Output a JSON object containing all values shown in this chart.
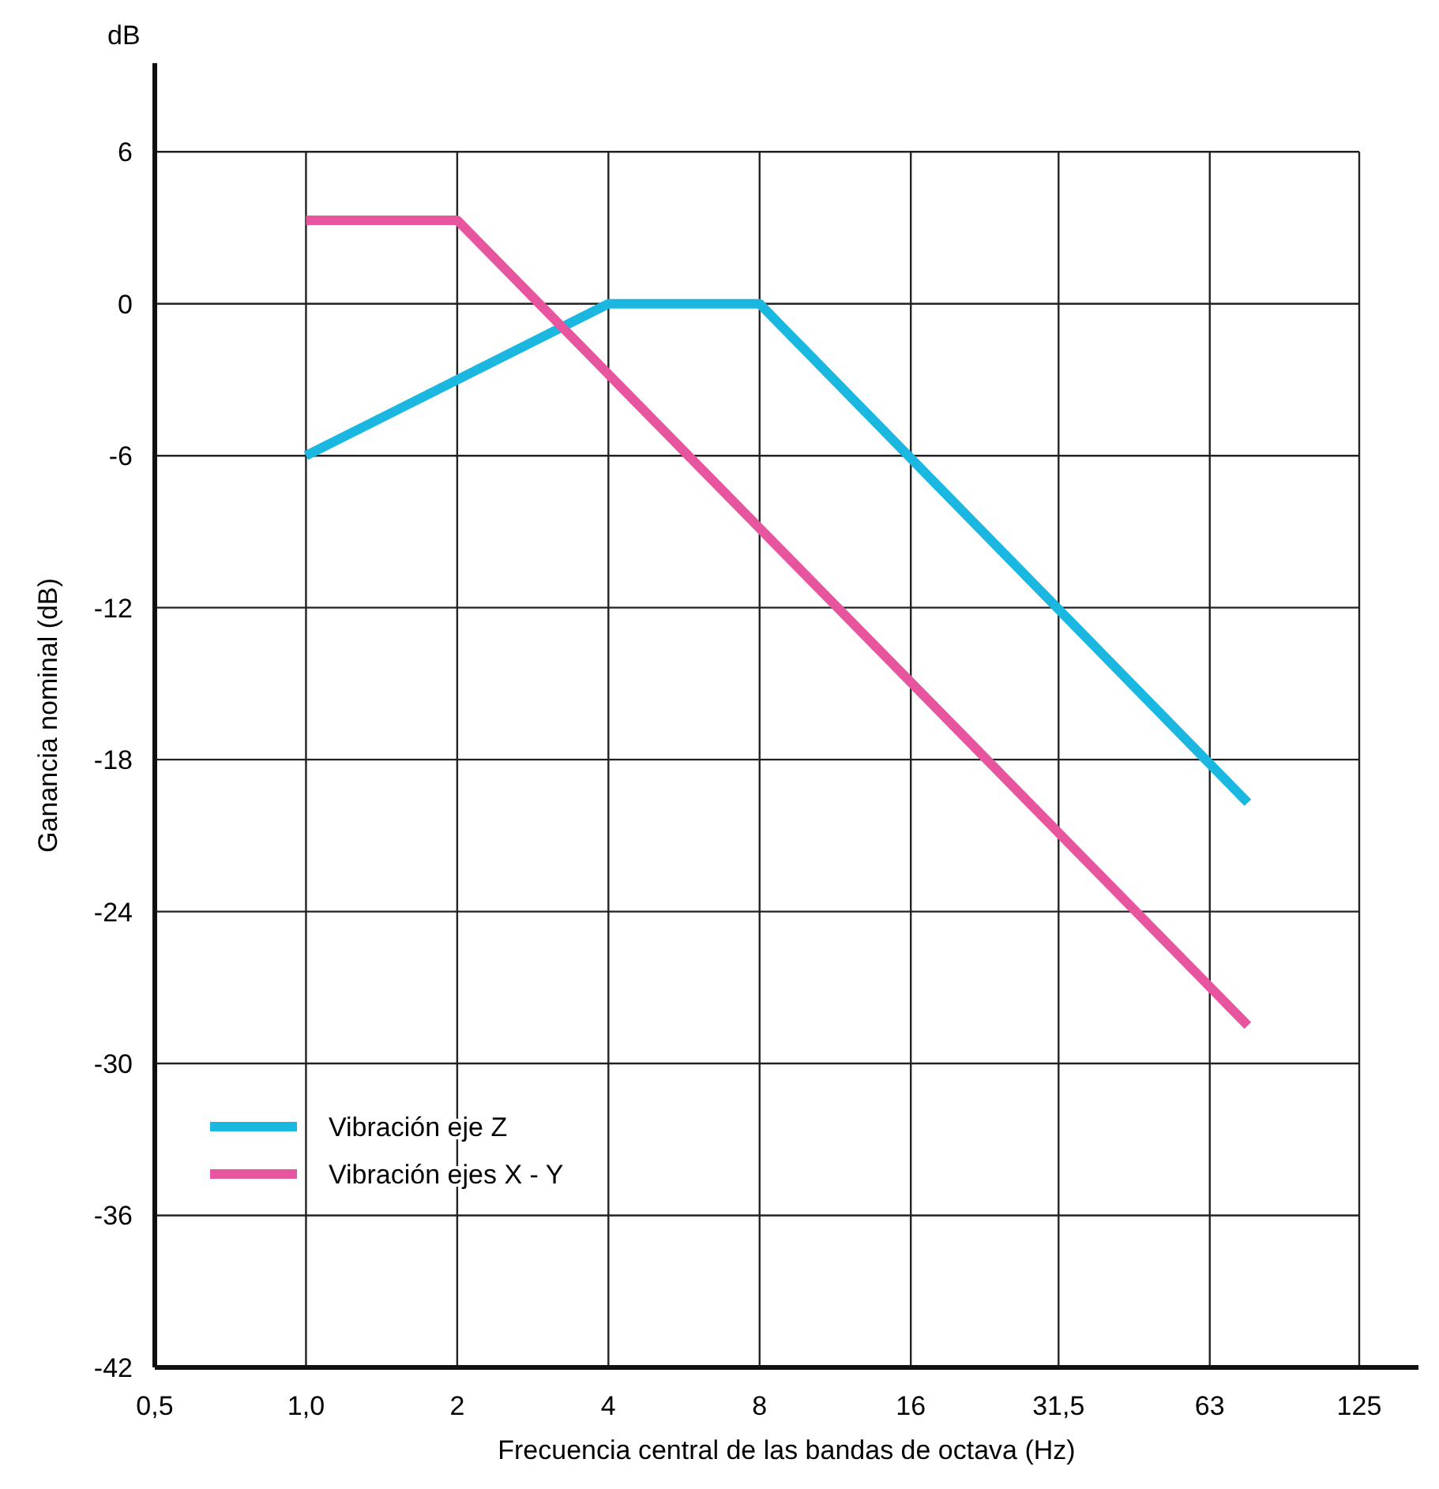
{
  "chart_data": {
    "type": "line",
    "xlabel": "Frecuencia central de las bandas de octava (Hz)",
    "ylabel": "Ganancia nominal (dB)",
    "annotations": [
      "dB"
    ],
    "log": "x",
    "xlim": [
      0.5,
      164
    ],
    "xticks": [
      {
        "value": 0.5,
        "label": "0,5"
      },
      {
        "value": 1,
        "label": "1,0"
      },
      2,
      4,
      8,
      16,
      {
        "value": 31.5,
        "label": "31,5"
      },
      63,
      125
    ],
    "ylim": [
      -42,
      9.5
    ],
    "yticks": [
      -42,
      -36,
      -30,
      -24,
      -18,
      -12,
      -6,
      0,
      6
    ],
    "grid": true,
    "legend": "bottom left",
    "marker": "none",
    "line_style": "solid",
    "series": [
      {
        "name": "Vibración eje Z",
        "color": "#1ab8e0",
        "x": [
          1,
          4,
          8,
          75
        ],
        "values": [
          -6,
          0,
          0,
          -19.7
        ]
      },
      {
        "name": "Vibración ejes X - Y",
        "color": "#e8559f",
        "x": [
          1,
          2,
          75
        ],
        "values": [
          3.3,
          3.3,
          -28.5
        ]
      }
    ]
  }
}
